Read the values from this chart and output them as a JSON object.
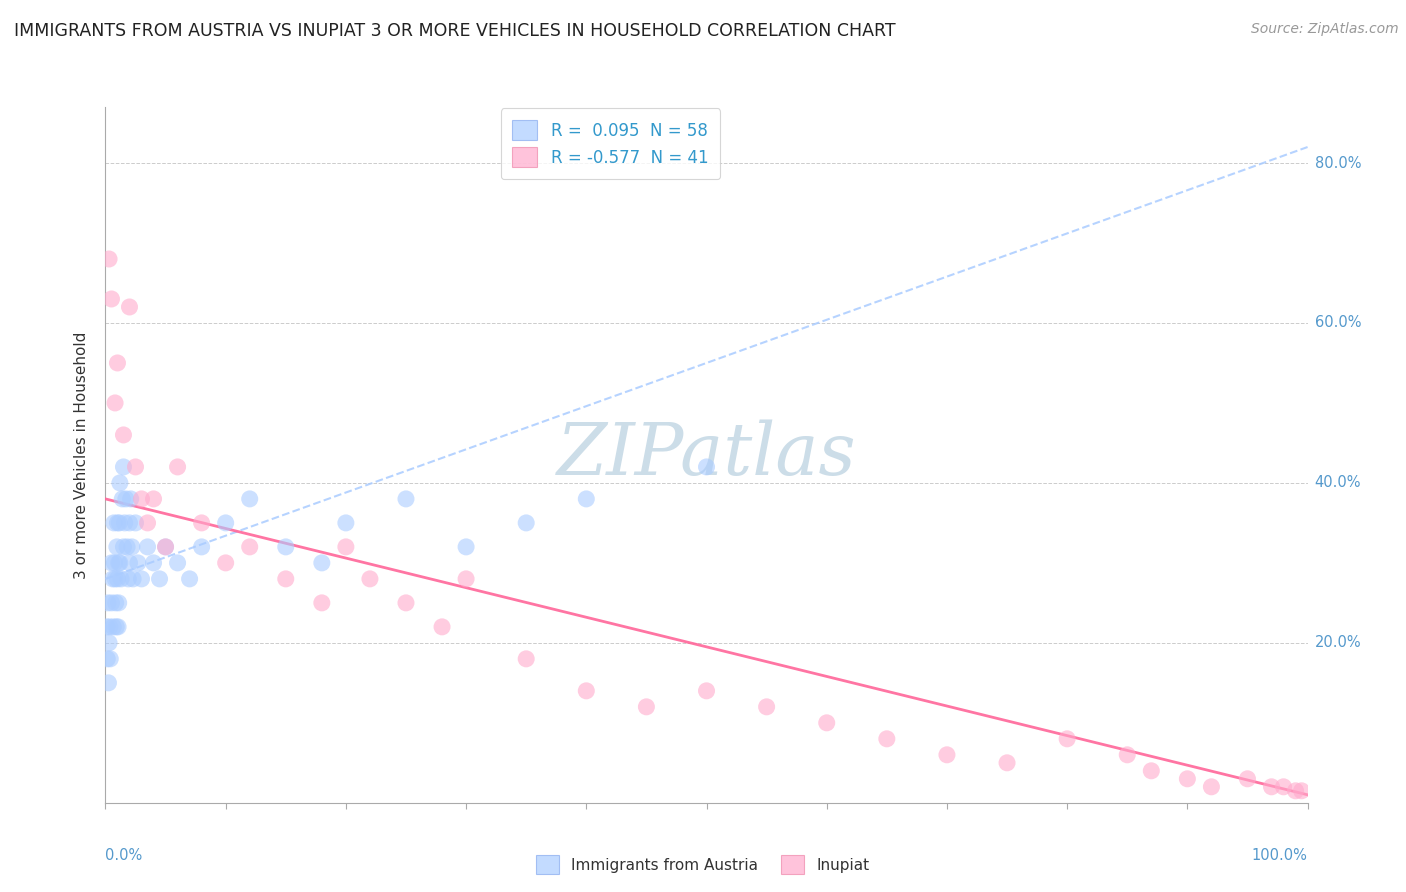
{
  "title": "IMMIGRANTS FROM AUSTRIA VS INUPIAT 3 OR MORE VEHICLES IN HOUSEHOLD CORRELATION CHART",
  "source": "Source: ZipAtlas.com",
  "ylabel": "3 or more Vehicles in Household",
  "legend1_label": "Immigrants from Austria",
  "legend2_label": "Inupiat",
  "r1_text": " 0.095",
  "n1_text": "58",
  "r2_text": "-0.577",
  "n2_text": "41",
  "blue_scatter": "#aaccff",
  "pink_scatter": "#ffaacc",
  "blue_trend": "#aaccff",
  "pink_trend": "#ff6699",
  "watermark_color": "#dde8f0",
  "grid_color": "#cccccc",
  "title_color": "#222222",
  "source_color": "#999999",
  "axis_label_color": "#333333",
  "tick_label_color": "#5599cc",
  "austria_x": [
    0.1,
    0.15,
    0.2,
    0.25,
    0.3,
    0.35,
    0.4,
    0.5,
    0.5,
    0.6,
    0.65,
    0.7,
    0.75,
    0.8,
    0.85,
    0.9,
    0.95,
    1.0,
    1.0,
    1.05,
    1.1,
    1.1,
    1.15,
    1.2,
    1.2,
    1.3,
    1.4,
    1.5,
    1.5,
    1.6,
    1.7,
    1.8,
    1.9,
    2.0,
    2.0,
    2.1,
    2.2,
    2.3,
    2.5,
    2.7,
    3.0,
    3.5,
    4.0,
    4.5,
    5.0,
    6.0,
    7.0,
    8.0,
    10.0,
    12.0,
    15.0,
    18.0,
    20.0,
    25.0,
    30.0,
    35.0,
    40.0,
    50.0
  ],
  "austria_y": [
    22.0,
    18.0,
    25.0,
    15.0,
    20.0,
    22.0,
    18.0,
    30.0,
    25.0,
    28.0,
    22.0,
    35.0,
    30.0,
    28.0,
    25.0,
    22.0,
    32.0,
    35.0,
    28.0,
    22.0,
    30.0,
    25.0,
    35.0,
    40.0,
    30.0,
    28.0,
    38.0,
    42.0,
    32.0,
    35.0,
    38.0,
    32.0,
    28.0,
    30.0,
    35.0,
    38.0,
    32.0,
    28.0,
    35.0,
    30.0,
    28.0,
    32.0,
    30.0,
    28.0,
    32.0,
    30.0,
    28.0,
    32.0,
    35.0,
    38.0,
    32.0,
    30.0,
    35.0,
    38.0,
    32.0,
    35.0,
    38.0,
    42.0
  ],
  "inupiat_x": [
    0.3,
    0.5,
    0.8,
    1.0,
    1.5,
    2.0,
    2.5,
    3.0,
    3.5,
    4.0,
    5.0,
    6.0,
    8.0,
    10.0,
    12.0,
    15.0,
    18.0,
    20.0,
    22.0,
    25.0,
    28.0,
    30.0,
    35.0,
    40.0,
    45.0,
    50.0,
    55.0,
    60.0,
    65.0,
    70.0,
    75.0,
    80.0,
    85.0,
    87.0,
    90.0,
    92.0,
    95.0,
    97.0,
    98.0,
    99.0,
    99.5
  ],
  "inupiat_y": [
    68.0,
    63.0,
    50.0,
    55.0,
    46.0,
    62.0,
    42.0,
    38.0,
    35.0,
    38.0,
    32.0,
    42.0,
    35.0,
    30.0,
    32.0,
    28.0,
    25.0,
    32.0,
    28.0,
    25.0,
    22.0,
    28.0,
    18.0,
    14.0,
    12.0,
    14.0,
    12.0,
    10.0,
    8.0,
    6.0,
    5.0,
    8.0,
    6.0,
    4.0,
    3.0,
    2.0,
    3.0,
    2.0,
    2.0,
    1.5,
    1.5
  ],
  "xlim": [
    0,
    100
  ],
  "ylim": [
    0,
    87
  ],
  "ytick_vals": [
    0,
    20,
    40,
    60,
    80
  ],
  "ytick_pcts": [
    "0.0%",
    "20.0%",
    "40.0%",
    "60.0%",
    "80.0%"
  ]
}
